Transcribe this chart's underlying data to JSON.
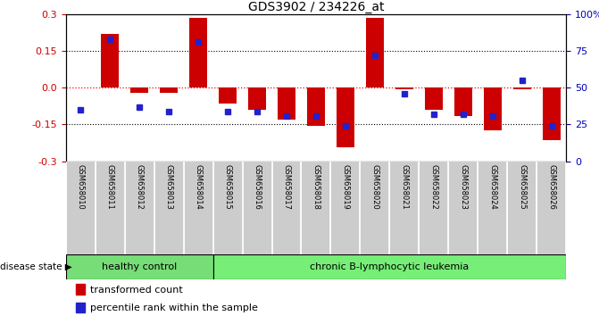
{
  "title": "GDS3902 / 234226_at",
  "samples": [
    "GSM658010",
    "GSM658011",
    "GSM658012",
    "GSM658013",
    "GSM658014",
    "GSM658015",
    "GSM658016",
    "GSM658017",
    "GSM658018",
    "GSM658019",
    "GSM658020",
    "GSM658021",
    "GSM658022",
    "GSM658023",
    "GSM658024",
    "GSM658025",
    "GSM658026"
  ],
  "red_bars": [
    0.002,
    0.22,
    -0.02,
    -0.02,
    0.285,
    -0.065,
    -0.09,
    -0.13,
    -0.155,
    -0.245,
    0.285,
    -0.005,
    -0.09,
    -0.115,
    -0.175,
    -0.008,
    -0.215
  ],
  "blue_dots_pct": [
    35,
    83,
    37,
    34,
    81,
    34,
    34,
    31,
    31,
    24,
    72,
    46,
    32,
    32,
    31,
    55,
    24
  ],
  "group_labels": [
    "healthy control",
    "chronic B-lymphocytic leukemia"
  ],
  "healthy_count": 5,
  "disease_state_label": "disease state",
  "legend_red": "transformed count",
  "legend_blue": "percentile rank within the sample",
  "ylim": [
    -0.3,
    0.3
  ],
  "yticks": [
    -0.3,
    -0.15,
    0.0,
    0.15,
    0.3
  ],
  "bar_color": "#cc0000",
  "dot_color": "#2222cc",
  "bg_color": "#ffffff",
  "group_bg_color": "#77dd77",
  "xtick_bg_color": "#cccccc",
  "axis_color_left": "#cc0000",
  "axis_color_right": "#0000bb"
}
